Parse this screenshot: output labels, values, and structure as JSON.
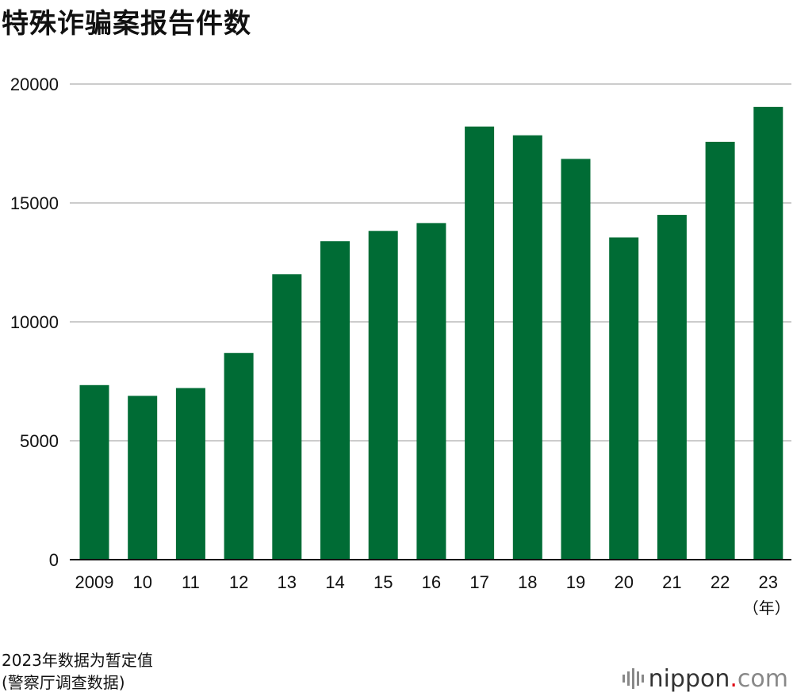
{
  "title": "特殊诈骗案报告件数",
  "note_lines": [
    "2023年数据为暂定值",
    "(警察厅调查数据)"
  ],
  "logo": {
    "name": "nippon",
    "dot": ".",
    "suffix": "com"
  },
  "colors": {
    "bar": "#006c35",
    "grid": "#cccccc",
    "axis": "#111111"
  },
  "chart_data": {
    "type": "bar",
    "title": "特殊诈骗案报告件数",
    "categories": [
      "2009",
      "10",
      "11",
      "12",
      "13",
      "14",
      "15",
      "16",
      "17",
      "18",
      "19",
      "20",
      "21",
      "22",
      "23"
    ],
    "values": [
      7340,
      6888,
      7216,
      8693,
      11998,
      13392,
      13824,
      14154,
      18212,
      17844,
      16851,
      13550,
      14498,
      17570,
      19038
    ],
    "x_unit_label": "（年）",
    "ylim": [
      0,
      20000
    ],
    "yticks": [
      0,
      5000,
      10000,
      15000,
      20000
    ],
    "grid": true,
    "legend": "none"
  }
}
